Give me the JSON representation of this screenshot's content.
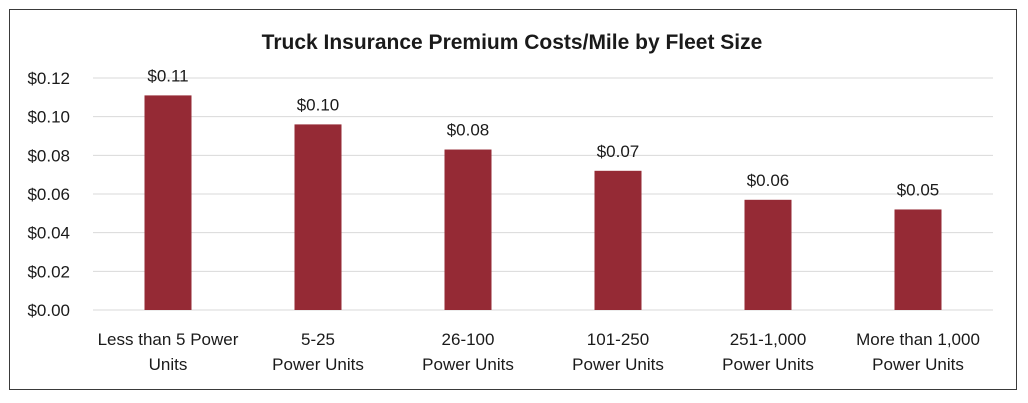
{
  "chart_data": {
    "type": "bar",
    "title": "Truck Insurance Premium Costs/Mile by Fleet Size",
    "categories": [
      [
        "Less than 5 Power",
        "Units"
      ],
      [
        "5-25",
        "Power Units"
      ],
      [
        "26-100",
        "Power Units"
      ],
      [
        "101-250",
        "Power Units"
      ],
      [
        "251-1,000",
        "Power Units"
      ],
      [
        "More than 1,000",
        "Power Units"
      ]
    ],
    "values": [
      0.111,
      0.096,
      0.083,
      0.072,
      0.057,
      0.052
    ],
    "data_labels": [
      "$0.11",
      "$0.10",
      "$0.08",
      "$0.07",
      "$0.06",
      "$0.05"
    ],
    "yticks": [
      "$0.00",
      "$0.02",
      "$0.04",
      "$0.06",
      "$0.08",
      "$0.10",
      "$0.12"
    ],
    "ylim": [
      0,
      0.12
    ],
    "ytick_step": 0.02,
    "xlabel": "",
    "ylabel": "",
    "grid": true,
    "bar_color": "#952a35"
  }
}
